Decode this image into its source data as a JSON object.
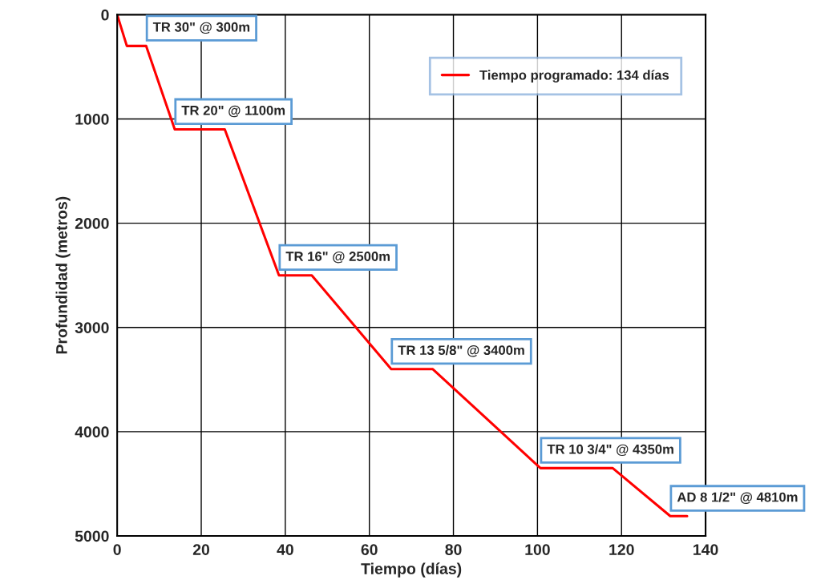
{
  "chart_data": {
    "type": "line",
    "xlabel": "Tiempo (días)",
    "ylabel": "Profundidad (metros)",
    "series": [
      {
        "name": "Tiempo programado: 134 días",
        "color": "#ff0000",
        "x": [
          0,
          2.3,
          6.9,
          13.7,
          25.6,
          38.5,
          46.3,
          65.2,
          75.1,
          100.7,
          117.9,
          131.6,
          135.6
        ],
        "values": [
          0,
          300,
          300,
          1100,
          1100,
          2500,
          2500,
          3400,
          3400,
          4350,
          4350,
          4810,
          4810
        ]
      }
    ],
    "xlim": [
      0,
      140
    ],
    "xticks": [
      0,
      20,
      40,
      60,
      80,
      100,
      120,
      140
    ],
    "ylim": [
      5000,
      0
    ],
    "yticks": [
      0,
      1000,
      2000,
      3000,
      4000,
      5000
    ],
    "grid": true,
    "legend": "top right",
    "marker": "none",
    "line_style": "solid",
    "annotations": [
      {
        "text": "TR 30\" @ 300m",
        "x": 6.9,
        "y": 300
      },
      {
        "text": "TR 20\" @ 1100m",
        "x": 13.7,
        "y": 1100
      },
      {
        "text": "TR 16\" @ 2500m",
        "x": 38.5,
        "y": 2500
      },
      {
        "text": "TR 13 5/8\" @ 3400m",
        "x": 65.2,
        "y": 3400
      },
      {
        "text": "TR 10 3/4\" @ 4350m",
        "x": 100.7,
        "y": 4350
      },
      {
        "text": "AD 8 1/2\" @ 4810m",
        "x": 131.6,
        "y": 4810
      }
    ]
  }
}
